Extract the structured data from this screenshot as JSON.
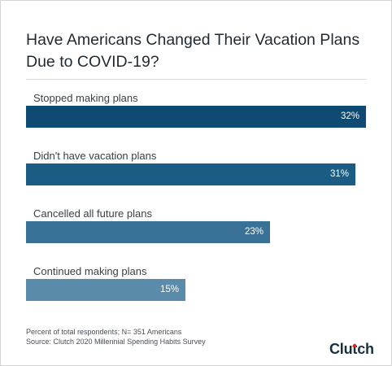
{
  "chart_data": {
    "type": "bar",
    "orientation": "horizontal",
    "title": [
      "Have Americans Changed Their Vacation Plans",
      "Due to COVID-19?"
    ],
    "categories": [
      "Stopped making plans",
      "Didn't have vacation plans",
      "Cancelled all future plans",
      "Continued making plans"
    ],
    "values": [
      32,
      31,
      23,
      15
    ],
    "value_labels": [
      "32%",
      "31%",
      "23%",
      "15%"
    ],
    "colors": [
      "#0f4a72",
      "#1a5c84",
      "#3a7297",
      "#5a8bab"
    ],
    "xlim": [
      0,
      32
    ],
    "grid": false,
    "legend": "none"
  },
  "footnote": {
    "line1": "Percent of total respondents; N= 351 Americans",
    "line2": "Source: Clutch 2020 Millennial Spending Habits Survey"
  },
  "brand": {
    "name": "Clutch",
    "accent_color": "#e62415"
  }
}
